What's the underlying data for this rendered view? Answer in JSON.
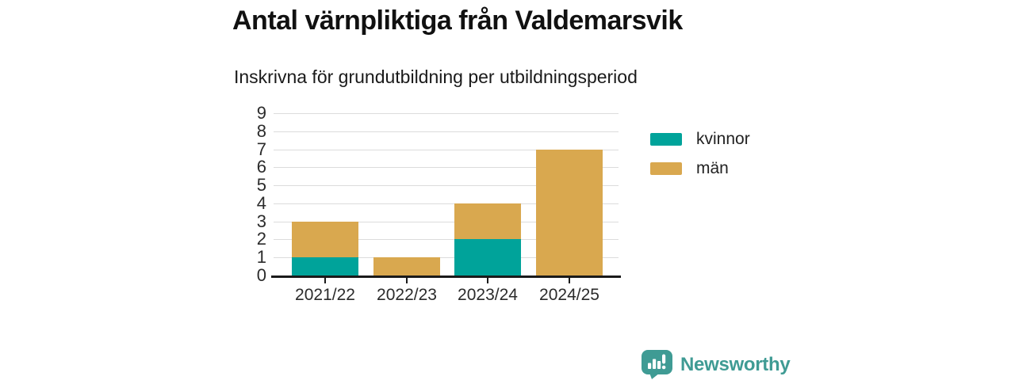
{
  "header": {
    "title": "Antal värnpliktiga från Valdemarsvik",
    "subtitle": "Inskrivna för grundutbildning per utbildningsperiod"
  },
  "chart_data": {
    "type": "bar",
    "stacked": true,
    "categories": [
      "2021/22",
      "2022/23",
      "2023/24",
      "2024/25"
    ],
    "series": [
      {
        "name": "kvinnor",
        "color": "#00a39a",
        "values": [
          1,
          0,
          2,
          0
        ]
      },
      {
        "name": "män",
        "color": "#d9a84f",
        "values": [
          2,
          1,
          2,
          7
        ]
      }
    ],
    "title": "Antal värnpliktiga från Valdemarsvik",
    "subtitle": "Inskrivna för grundutbildning per utbildningsperiod",
    "xlabel": "",
    "ylabel": "",
    "ylim": [
      0,
      9
    ],
    "yticks": [
      0,
      1,
      2,
      3,
      4,
      5,
      6,
      7,
      8,
      9
    ],
    "grid": true,
    "legend_position": "right"
  },
  "branding": {
    "logo_text": "Newsworthy",
    "logo_icon": "newsworthy-speech-bubble-bar-chart-icon",
    "logo_color": "#3f9b94"
  },
  "colors": {
    "grid_line": "#dcdcdc",
    "axis_line": "#1a1a1a",
    "title_text": "#111111",
    "body_text": "#2b2b2b"
  }
}
